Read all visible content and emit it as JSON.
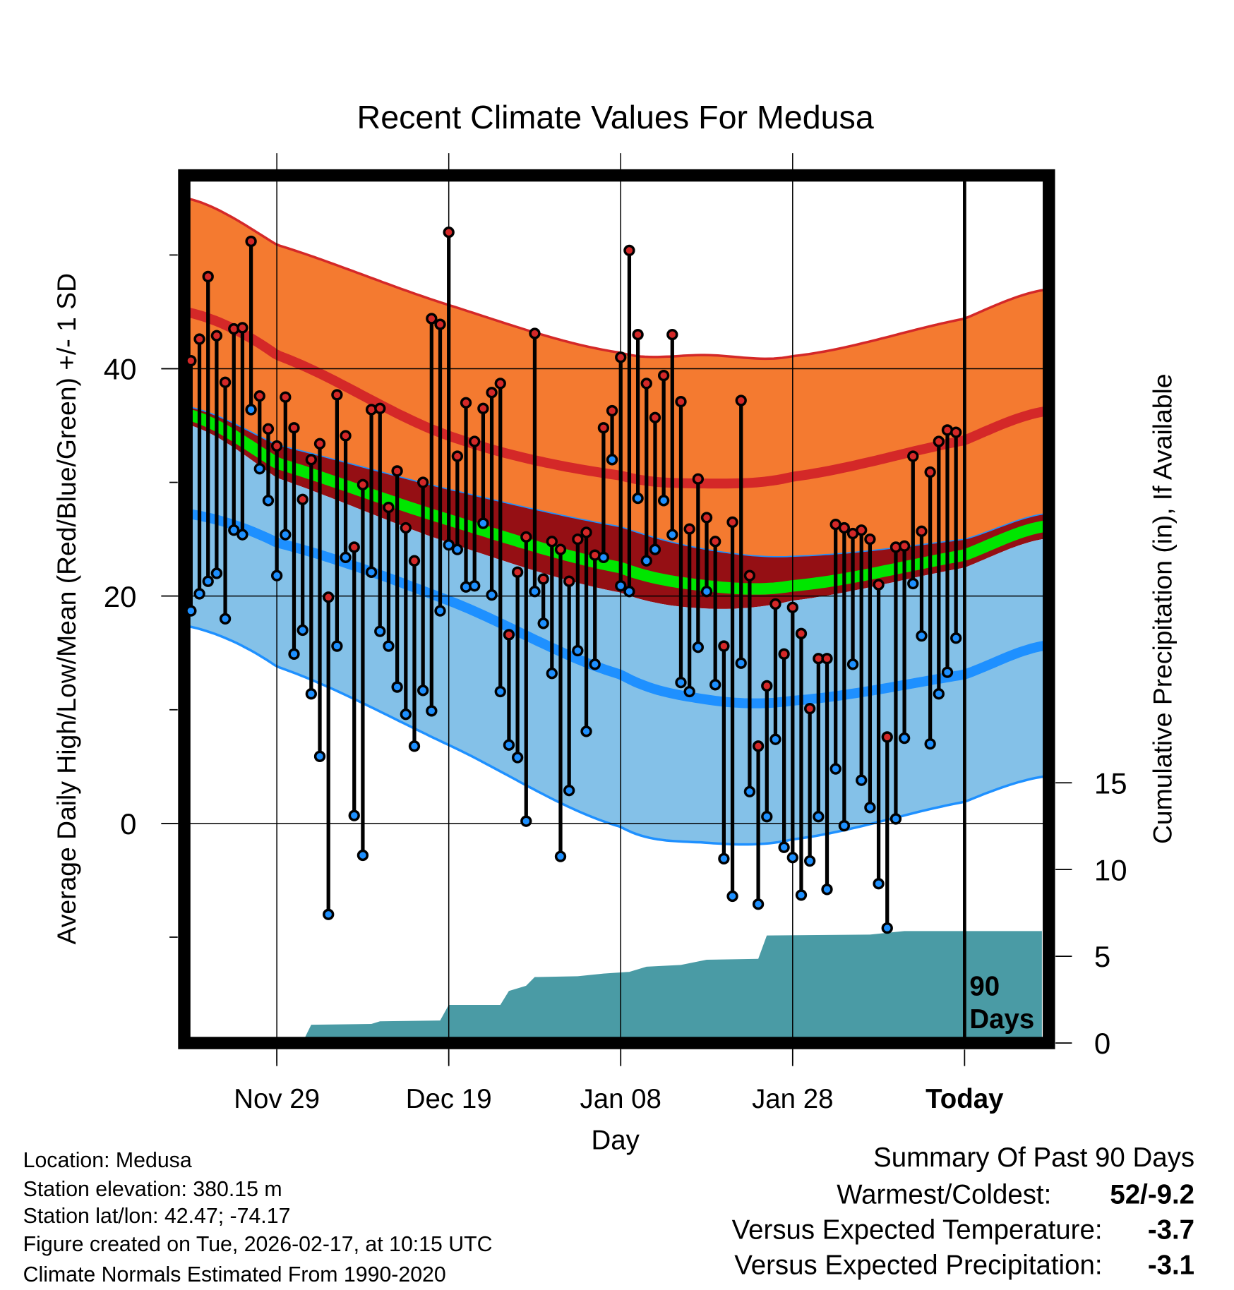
{
  "chart_data": {
    "type": "line",
    "title": "Recent Climate Values For Medusa",
    "xlabel": "Day",
    "ylabel": "Average Daily High/Low/Mean (Red/Blue/Green) +/- 1 SD",
    "ylabel_right": "Cumulative Precipitation (in), If Available",
    "ylim": [
      -18.7,
      56.3
    ],
    "ylim_right": [
      0,
      35
    ],
    "xlim_days": [
      0,
      99
    ],
    "x_ticks": [
      {
        "day": 10,
        "label": "Nov 29"
      },
      {
        "day": 30,
        "label": "Dec 19"
      },
      {
        "day": 50,
        "label": "Jan 08"
      },
      {
        "day": 70,
        "label": "Jan 28"
      },
      {
        "day": 90,
        "label": "Today"
      }
    ],
    "y_ticks": [
      0,
      20,
      40
    ],
    "y_minor_ticks": [
      -10,
      10,
      30,
      50
    ],
    "y_right_ticks": [
      0,
      5,
      10,
      15
    ],
    "grid": true,
    "today_marker_label": [
      "90",
      "Days"
    ],
    "today_day": 90,
    "daily": {
      "high": [
        40.7,
        42.6,
        48.1,
        42.9,
        38.8,
        43.5,
        43.6,
        51.2,
        37.6,
        34.7,
        33.2,
        37.5,
        34.8,
        28.5,
        32.0,
        33.4,
        19.9,
        37.7,
        34.1,
        24.3,
        29.8,
        36.4,
        36.5,
        27.8,
        31.0,
        26.0,
        23.1,
        30.0,
        44.4,
        43.9,
        52.0,
        32.3,
        37.0,
        33.6,
        36.5,
        37.9,
        38.7,
        16.6,
        22.1,
        25.2,
        43.1,
        21.5,
        24.8,
        24.1,
        21.3,
        25.0,
        25.6,
        23.6,
        34.8,
        36.3,
        41.0,
        50.4,
        43.0,
        38.7,
        35.7,
        39.4,
        43.0,
        37.1,
        25.9,
        30.3,
        26.9,
        24.8,
        15.6,
        26.5,
        37.2,
        21.8,
        6.8,
        12.1,
        19.3,
        14.9,
        19.0,
        16.7,
        10.1,
        14.5,
        14.5,
        26.3,
        26.0,
        25.5,
        25.8,
        25.0,
        21.0,
        7.6,
        24.3,
        24.4,
        32.3,
        25.7,
        30.9,
        33.6,
        34.6,
        34.4
      ],
      "low": [
        18.7,
        20.2,
        21.3,
        22.0,
        18.0,
        25.8,
        25.4,
        36.4,
        31.2,
        28.4,
        21.8,
        25.4,
        14.9,
        17.0,
        11.4,
        5.9,
        -8.0,
        15.6,
        23.4,
        0.7,
        -2.8,
        22.1,
        16.9,
        15.6,
        12.0,
        9.6,
        6.8,
        11.7,
        9.9,
        18.7,
        24.5,
        24.1,
        20.8,
        20.9,
        26.4,
        20.1,
        11.6,
        6.9,
        5.8,
        0.2,
        20.4,
        17.6,
        13.2,
        -2.9,
        2.9,
        15.2,
        8.1,
        14.0,
        23.4,
        32.0,
        20.9,
        20.4,
        28.6,
        23.1,
        24.1,
        28.4,
        25.4,
        12.4,
        11.6,
        15.5,
        20.4,
        12.2,
        -3.1,
        -6.4,
        14.1,
        2.8,
        -7.1,
        0.6,
        7.4,
        -2.1,
        -3.0,
        -6.3,
        -3.3,
        0.6,
        -5.8,
        4.8,
        -0.2,
        14.0,
        3.8,
        1.4,
        -5.3,
        -9.2,
        0.4,
        7.5,
        21.1,
        16.5,
        7.0,
        11.4,
        13.3,
        16.3
      ]
    },
    "normals": {
      "days": [
        0,
        10,
        30,
        50,
        60,
        70,
        90,
        99
      ],
      "high_plus_sd": [
        54.9,
        50.9,
        45.6,
        41.4,
        41.2,
        41.1,
        44.4,
        46.9
      ],
      "high_mean": [
        44.9,
        41.2,
        34.1,
        30.6,
        29.9,
        30.5,
        33.7,
        36.2
      ],
      "high_minus_sd": [
        36.6,
        33.3,
        29.4,
        26.1,
        24.1,
        23.5,
        25.0,
        27.2
      ],
      "mean": [
        35.9,
        31.7,
        26.7,
        22.5,
        20.9,
        20.9,
        23.6,
        26.1
      ],
      "low_plus_sd": [
        35.0,
        30.4,
        24.7,
        20.3,
        18.9,
        19.6,
        22.5,
        25.0
      ],
      "low_mean": [
        27.2,
        24.7,
        19.6,
        13.1,
        10.9,
        10.8,
        13.1,
        15.6
      ],
      "low_minus_sd": [
        17.3,
        13.8,
        6.9,
        -0.3,
        -1.7,
        -1.4,
        1.9,
        4.1
      ]
    },
    "cumulative_precip": [
      [
        0,
        0
      ],
      [
        10,
        0.05
      ],
      [
        13,
        0.05
      ],
      [
        14,
        1.05
      ],
      [
        21,
        1.1
      ],
      [
        22,
        1.25
      ],
      [
        29,
        1.3
      ],
      [
        30,
        2.2
      ],
      [
        36,
        2.2
      ],
      [
        37,
        3.0
      ],
      [
        39,
        3.3
      ],
      [
        40,
        3.8
      ],
      [
        45,
        3.85
      ],
      [
        48,
        4.0
      ],
      [
        51,
        4.1
      ],
      [
        53,
        4.4
      ],
      [
        57,
        4.5
      ],
      [
        60,
        4.8
      ],
      [
        66,
        4.85
      ],
      [
        67,
        6.2
      ],
      [
        79,
        6.25
      ],
      [
        83,
        6.45
      ],
      [
        99,
        6.45
      ]
    ],
    "colors": {
      "band_high": "#F47A30",
      "band_mid": "#950F14",
      "band_low": "#84C1E8",
      "high_line": "#D42828",
      "low_line": "#1E90FF",
      "mean_line": "#00E600",
      "precip": "#4A9BA5",
      "high_dot": "#D42828",
      "low_dot": "#1E90FF"
    }
  },
  "footer": {
    "location": "Location: Medusa",
    "elevation": "Station elevation: 380.15 m",
    "latlon": "Station lat/lon: 42.47; -74.17",
    "created": "Figure created on Tue, 2026-02-17, at 10:15 UTC",
    "normals": "Climate Normals Estimated From 1990-2020"
  },
  "summary": {
    "title": "Summary Of Past 90 Days",
    "warmest_coldest_label": "Warmest/Coldest:",
    "warmest_coldest_value": "52/-9.2",
    "temp_label": "Versus Expected Temperature:",
    "temp_value": "-3.7",
    "temp_color": "#1E90FF",
    "precip_label": "Versus Expected Precipitation:",
    "precip_value": "-3.1",
    "precip_color": "#A0522D"
  }
}
